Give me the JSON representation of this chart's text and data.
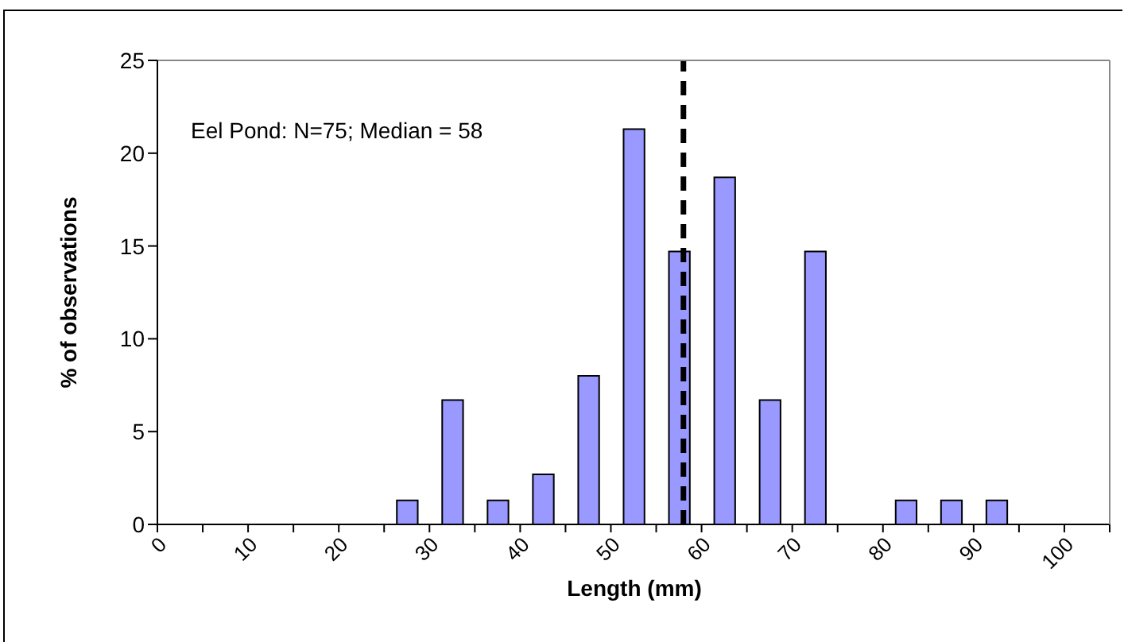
{
  "chart_data": {
    "type": "histogram",
    "xlabel": "Length (mm)",
    "ylabel": "% of observations",
    "bins": [
      0,
      5,
      10,
      15,
      20,
      25,
      30,
      35,
      40,
      45,
      50,
      55,
      60,
      65,
      70,
      75,
      80,
      85,
      90,
      95,
      100,
      105
    ],
    "values": [
      0,
      0,
      0,
      0,
      0,
      1.3,
      6.7,
      1.3,
      2.7,
      8,
      21.3,
      14.7,
      18.7,
      6.7,
      14.7,
      0,
      1.3,
      1.3,
      1.3,
      0,
      0
    ],
    "color": "#9999ff",
    "xlim": [
      0,
      105
    ],
    "xticks": [
      0,
      {
        "value": 5,
        "label": null
      },
      10,
      {
        "value": 15,
        "label": null
      },
      20,
      {
        "value": 25,
        "label": null
      },
      30,
      {
        "value": 35,
        "label": null
      },
      40,
      {
        "value": 45,
        "label": null
      },
      50,
      {
        "value": 55,
        "label": null
      },
      60,
      {
        "value": 65,
        "label": null
      },
      70,
      {
        "value": 75,
        "label": null
      },
      80,
      {
        "value": 85,
        "label": null
      },
      90,
      {
        "value": 95,
        "label": null
      },
      100,
      {
        "value": 105,
        "label": null
      }
    ],
    "ylim": [
      0,
      25
    ],
    "yticks": [
      0,
      5,
      10,
      15,
      20,
      25
    ],
    "ref_lines": [
      {
        "axis": "x",
        "value": 58,
        "color": "#000000",
        "line_style": "dashed"
      }
    ],
    "annotations": [
      "Eel Pond: N=75; Median = 58"
    ]
  }
}
